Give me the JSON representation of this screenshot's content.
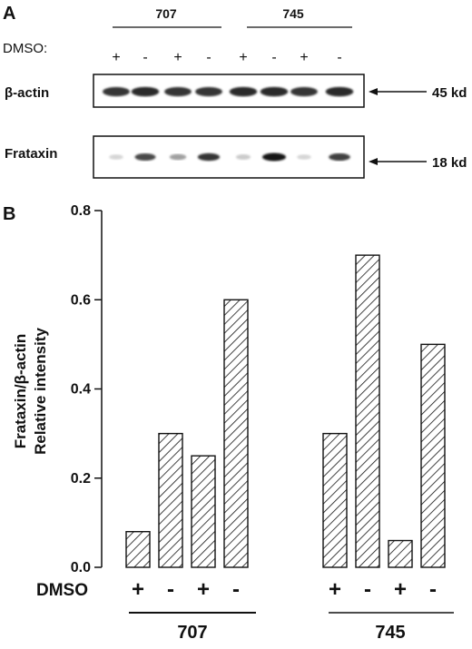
{
  "panel_a": {
    "label": "A",
    "groups": [
      "707",
      "745"
    ],
    "dmso_label": "DMSO:",
    "dmso_signs": [
      "+",
      "-",
      "+",
      "-",
      "+",
      "-",
      "+",
      "-"
    ],
    "blots": [
      {
        "name": "β-actin",
        "size": "45 kd",
        "band_intensity": [
          0.85,
          0.9,
          0.85,
          0.85,
          0.9,
          0.9,
          0.85,
          0.9
        ]
      },
      {
        "name": "Frataxin",
        "size": "18 kd",
        "band_intensity": [
          0.1,
          0.75,
          0.35,
          0.85,
          0.15,
          1.0,
          0.1,
          0.8
        ]
      }
    ]
  },
  "panel_b": {
    "label": "B",
    "dmso_label": "DMSO"
  },
  "chart_data": {
    "type": "bar",
    "ylabel_line1": "Frataxin/β-actin",
    "ylabel_line2": "Relative intensity",
    "ylim": [
      0,
      0.8
    ],
    "yticks": [
      "0.0",
      "0.2",
      "0.4",
      "0.6",
      "0.8"
    ],
    "groups": [
      {
        "name": "707",
        "categories": [
          "+",
          "-",
          "+",
          "-"
        ],
        "values": [
          0.08,
          0.3,
          0.25,
          0.6
        ]
      },
      {
        "name": "745",
        "categories": [
          "+",
          "-",
          "+",
          "-"
        ],
        "values": [
          0.3,
          0.7,
          0.06,
          0.5
        ]
      }
    ],
    "bar_pattern": "diagonal-hatch",
    "grid": false
  }
}
